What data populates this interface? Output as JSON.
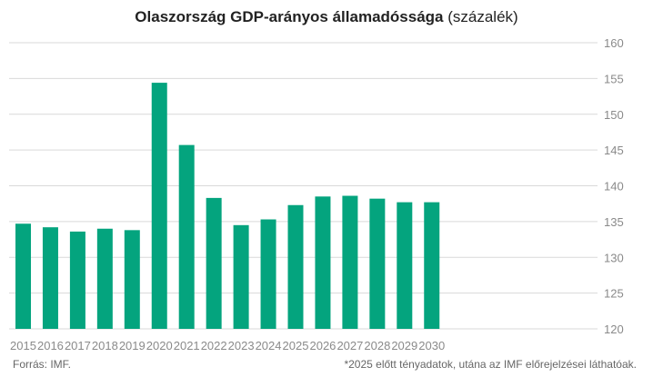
{
  "chart_data": {
    "type": "bar",
    "title": "Olaszország GDP-arányos államadóssága",
    "subtitle": "(százalék)",
    "categories": [
      "2015",
      "2016",
      "2017",
      "2018",
      "2019",
      "2020",
      "2021",
      "2022",
      "2023",
      "2024",
      "2025",
      "2026",
      "2027",
      "2028",
      "2029",
      "2030"
    ],
    "values": [
      134.7,
      134.2,
      133.6,
      134.0,
      133.8,
      154.4,
      145.7,
      138.3,
      134.5,
      135.3,
      137.3,
      138.5,
      138.6,
      138.2,
      137.7,
      137.7
    ],
    "ylim": [
      120,
      160
    ],
    "yticks": [
      120,
      125,
      130,
      135,
      140,
      145,
      150,
      155,
      160
    ],
    "y_axis_side": "right",
    "grid": true,
    "bar_color": "#04a47e",
    "xlabel": "",
    "ylabel": ""
  },
  "footer": {
    "source": "Forrás: IMF.",
    "note": "*2025 előtt tényadatok, utána az IMF előrejelzései láthatóak."
  }
}
